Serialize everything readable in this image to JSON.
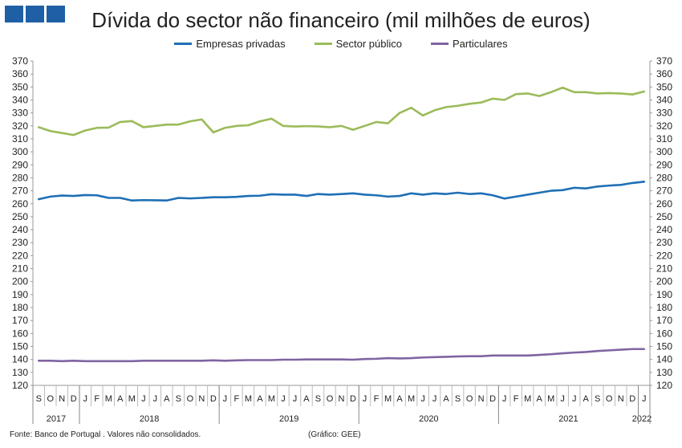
{
  "logo": {
    "icon": "three-blue-squares-logo",
    "color": "#1f5fa6"
  },
  "footer": {
    "source": "Fonte: Banco de Portugal . Valores não consolidados.",
    "credit": "(Gráfico: GEE)"
  },
  "chart_data": {
    "type": "line",
    "title": "Dívida do sector não financeiro (mil milhões de euros)",
    "ylim": [
      120,
      370
    ],
    "ytick_step": 10,
    "grid": false,
    "legend_position": "top-center",
    "month_labels": [
      "S",
      "O",
      "N",
      "D",
      "J",
      "F",
      "M",
      "A",
      "M",
      "J",
      "J",
      "A",
      "S",
      "O",
      "N",
      "D",
      "J",
      "F",
      "M",
      "A",
      "M",
      "J",
      "J",
      "A",
      "S",
      "O",
      "N",
      "D",
      "J",
      "F",
      "M",
      "A",
      "M",
      "J",
      "J",
      "A",
      "S",
      "O",
      "N",
      "D",
      "J",
      "F",
      "M",
      "A",
      "M",
      "J",
      "J",
      "A",
      "S",
      "O",
      "N",
      "D",
      "J"
    ],
    "year_groups": [
      {
        "label": "2017",
        "start": 0,
        "count": 4
      },
      {
        "label": "2018",
        "start": 4,
        "count": 12
      },
      {
        "label": "2019",
        "start": 16,
        "count": 12
      },
      {
        "label": "2020",
        "start": 28,
        "count": 12
      },
      {
        "label": "2021",
        "start": 40,
        "count": 12
      },
      {
        "label": "2022",
        "start": 52,
        "count": 1
      }
    ],
    "series": [
      {
        "name": "Empresas privadas",
        "color": "#1f6fb5",
        "values": [
          263.5,
          265.5,
          266.3,
          266.0,
          266.7,
          266.5,
          264.5,
          264.5,
          262.5,
          262.8,
          262.7,
          262.5,
          264.5,
          264.1,
          264.5,
          265.0,
          265.0,
          265.3,
          266.0,
          266.2,
          267.3,
          267.0,
          267.0,
          266.0,
          267.5,
          267.0,
          267.5,
          268.0,
          267.0,
          266.5,
          265.5,
          266.0,
          268.0,
          267.0,
          268.0,
          267.5,
          268.5,
          267.5,
          268.0,
          266.5,
          264.0,
          265.5,
          267.0,
          268.5,
          270.0,
          270.5,
          272.3,
          271.8,
          273.3,
          274.0,
          274.5,
          276.0,
          277.0
        ]
      },
      {
        "name": "Sector público",
        "color": "#9bbb59",
        "values": [
          319.0,
          316.0,
          314.5,
          313.0,
          316.5,
          318.5,
          318.7,
          323.0,
          323.7,
          319.0,
          320.0,
          321.0,
          321.0,
          323.5,
          325.0,
          315.0,
          318.5,
          320.0,
          320.5,
          323.5,
          325.5,
          320.0,
          319.5,
          319.8,
          319.6,
          319.0,
          320.0,
          317.0,
          320.0,
          323.0,
          322.0,
          330.0,
          334.0,
          328.0,
          332.0,
          334.5,
          335.5,
          337.0,
          338.0,
          341.0,
          340.0,
          344.5,
          345.0,
          343.0,
          346.0,
          349.5,
          346.0,
          346.0,
          345.0,
          345.3,
          345.0,
          344.2,
          346.5
        ]
      },
      {
        "name": "Particulares",
        "color": "#8064a2",
        "values": [
          139.0,
          139.0,
          138.7,
          139.0,
          138.7,
          138.7,
          138.7,
          138.7,
          138.7,
          139.0,
          139.0,
          139.0,
          139.0,
          139.0,
          139.0,
          139.3,
          139.0,
          139.3,
          139.5,
          139.5,
          139.5,
          139.8,
          139.8,
          140.0,
          140.0,
          140.0,
          140.0,
          139.8,
          140.3,
          140.5,
          141.0,
          140.8,
          141.0,
          141.5,
          141.8,
          142.0,
          142.3,
          142.5,
          142.5,
          143.0,
          143.0,
          143.0,
          143.0,
          143.5,
          144.0,
          144.7,
          145.3,
          145.7,
          146.5,
          147.0,
          147.5,
          148.0,
          148.0
        ]
      }
    ]
  }
}
